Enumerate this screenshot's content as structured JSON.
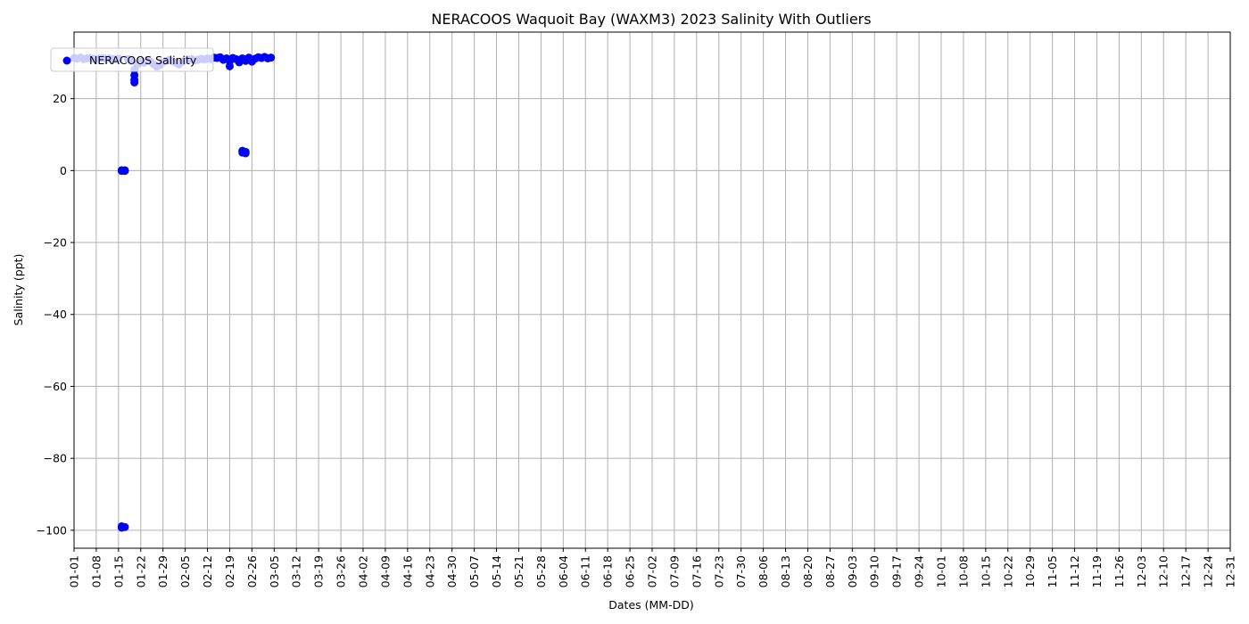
{
  "chart_data": {
    "type": "scatter",
    "title": "NERACOOS Waquoit Bay (WAXM3) 2023 Salinity With Outliers",
    "xlabel": "Dates (MM-DD)",
    "ylabel": "Salinity (ppt)",
    "ylim": [
      -105,
      38.5
    ],
    "xlim": [
      "2023-01-01",
      "2023-12-31"
    ],
    "grid": true,
    "legend_placement": "upper-left",
    "marker_color": "#0000ff",
    "x_tick_labels": [
      "01-01",
      "01-08",
      "01-15",
      "01-22",
      "01-29",
      "02-05",
      "02-12",
      "02-19",
      "02-26",
      "03-05",
      "03-12",
      "03-19",
      "03-26",
      "04-02",
      "04-09",
      "04-16",
      "04-23",
      "04-30",
      "05-07",
      "05-14",
      "05-21",
      "05-28",
      "06-04",
      "06-11",
      "06-18",
      "06-25",
      "07-02",
      "07-09",
      "07-16",
      "07-23",
      "07-30",
      "08-06",
      "08-13",
      "08-20",
      "08-27",
      "09-03",
      "09-10",
      "09-17",
      "09-24",
      "10-01",
      "10-08",
      "10-15",
      "10-22",
      "10-29",
      "11-05",
      "11-12",
      "11-19",
      "11-26",
      "12-03",
      "12-10",
      "12-17",
      "12-24",
      "12-31"
    ],
    "y_ticks": [
      20,
      0,
      -20,
      -40,
      -60,
      -80,
      -100
    ],
    "y_tick_labels": [
      "20",
      "0",
      "−20",
      "−40",
      "−60",
      "−80",
      "−100"
    ],
    "series": [
      {
        "name": "NERACOOS Salinity",
        "color": "#0000ff",
        "points": [
          [
            "2023-01-01",
            31.3
          ],
          [
            "2023-01-02",
            31.1
          ],
          [
            "2023-01-03",
            31.4
          ],
          [
            "2023-01-04",
            31.0
          ],
          [
            "2023-01-05",
            31.2
          ],
          [
            "2023-01-06",
            31.3
          ],
          [
            "2023-01-07",
            31.1
          ],
          [
            "2023-01-08",
            31.0
          ],
          [
            "2023-01-09",
            31.2
          ],
          [
            "2023-01-10",
            31.3
          ],
          [
            "2023-01-11",
            31.1
          ],
          [
            "2023-01-12",
            31.2
          ],
          [
            "2023-01-13",
            31.0
          ],
          [
            "2023-01-14",
            30.9
          ],
          [
            "2023-01-15",
            31.1
          ],
          [
            "2023-01-16",
            0.1
          ],
          [
            "2023-01-16",
            0.0
          ],
          [
            "2023-01-16",
            -0.1
          ],
          [
            "2023-01-17",
            0.1
          ],
          [
            "2023-01-17",
            -0.1
          ],
          [
            "2023-01-16",
            -98.9
          ],
          [
            "2023-01-16",
            -99.3
          ],
          [
            "2023-01-17",
            -99.1
          ],
          [
            "2023-01-18",
            31.0
          ],
          [
            "2023-01-19",
            30.5
          ],
          [
            "2023-01-20",
            28.0
          ],
          [
            "2023-01-20",
            26.5
          ],
          [
            "2023-01-20",
            25.2
          ],
          [
            "2023-01-20",
            24.5
          ],
          [
            "2023-01-21",
            29.5
          ],
          [
            "2023-01-22",
            30.2
          ],
          [
            "2023-01-23",
            30.0
          ],
          [
            "2023-01-24",
            30.6
          ],
          [
            "2023-01-25",
            30.3
          ],
          [
            "2023-01-26",
            29.6
          ],
          [
            "2023-01-27",
            28.9
          ],
          [
            "2023-01-28",
            29.3
          ],
          [
            "2023-01-29",
            30.1
          ],
          [
            "2023-01-30",
            30.5
          ],
          [
            "2023-01-31",
            30.8
          ],
          [
            "2023-02-01",
            30.4
          ],
          [
            "2023-02-02",
            30.0
          ],
          [
            "2023-02-03",
            29.5
          ],
          [
            "2023-02-04",
            30.2
          ],
          [
            "2023-02-05",
            30.7
          ],
          [
            "2023-02-06",
            30.9
          ],
          [
            "2023-02-07",
            31.0
          ],
          [
            "2023-02-08",
            30.6
          ],
          [
            "2023-02-09",
            30.8
          ],
          [
            "2023-02-10",
            31.1
          ],
          [
            "2023-02-11",
            30.9
          ],
          [
            "2023-02-12",
            31.2
          ],
          [
            "2023-02-13",
            31.0
          ],
          [
            "2023-02-14",
            31.4
          ],
          [
            "2023-02-15",
            31.3
          ],
          [
            "2023-02-16",
            31.5
          ],
          [
            "2023-02-17",
            30.8
          ],
          [
            "2023-02-18",
            31.2
          ],
          [
            "2023-02-19",
            29.0
          ],
          [
            "2023-02-19",
            30.4
          ],
          [
            "2023-02-20",
            31.3
          ],
          [
            "2023-02-21",
            31.0
          ],
          [
            "2023-02-22",
            30.1
          ],
          [
            "2023-02-23",
            5.5
          ],
          [
            "2023-02-23",
            5.0
          ],
          [
            "2023-02-24",
            5.2
          ],
          [
            "2023-02-24",
            4.8
          ],
          [
            "2023-02-23",
            31.2
          ],
          [
            "2023-02-24",
            30.5
          ],
          [
            "2023-02-25",
            31.4
          ],
          [
            "2023-02-26",
            30.3
          ],
          [
            "2023-02-27",
            31.1
          ],
          [
            "2023-02-28",
            31.5
          ],
          [
            "2023-03-01",
            31.3
          ],
          [
            "2023-03-02",
            31.6
          ],
          [
            "2023-03-03",
            31.2
          ],
          [
            "2023-03-04",
            31.4
          ]
        ]
      }
    ]
  }
}
